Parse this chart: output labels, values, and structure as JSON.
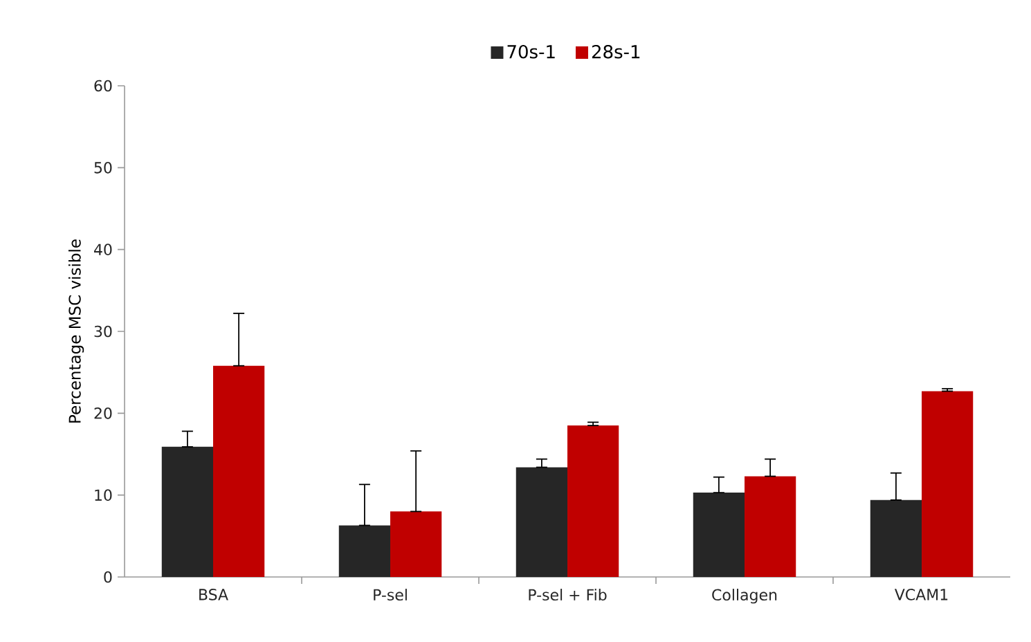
{
  "chart_data": {
    "type": "bar",
    "ylabel": "Percentage MSC visible",
    "categories": [
      "BSA",
      "P-sel",
      "P-sel + Fib",
      "Collagen",
      "VCAM1"
    ],
    "series": [
      {
        "name": "70s-1",
        "color": "#262626",
        "values": [
          15.9,
          6.3,
          13.4,
          10.3,
          9.4
        ],
        "errors": [
          [
            15.9,
            17.8
          ],
          [
            6.3,
            11.3
          ],
          [
            13.4,
            14.4
          ],
          [
            10.3,
            12.2
          ],
          [
            9.4,
            12.7
          ]
        ]
      },
      {
        "name": "28s-1",
        "color": "#c00000",
        "values": [
          25.8,
          8.0,
          18.5,
          12.3,
          22.7
        ],
        "errors": [
          [
            25.8,
            32.2
          ],
          [
            8.0,
            15.4
          ],
          [
            18.5,
            18.9
          ],
          [
            12.3,
            14.4
          ],
          [
            22.7,
            23.0
          ]
        ]
      }
    ],
    "ylim": [
      0,
      60
    ],
    "yticks": [
      0,
      10,
      20,
      30,
      40,
      50,
      60
    ],
    "legend": "top",
    "grid": false
  }
}
